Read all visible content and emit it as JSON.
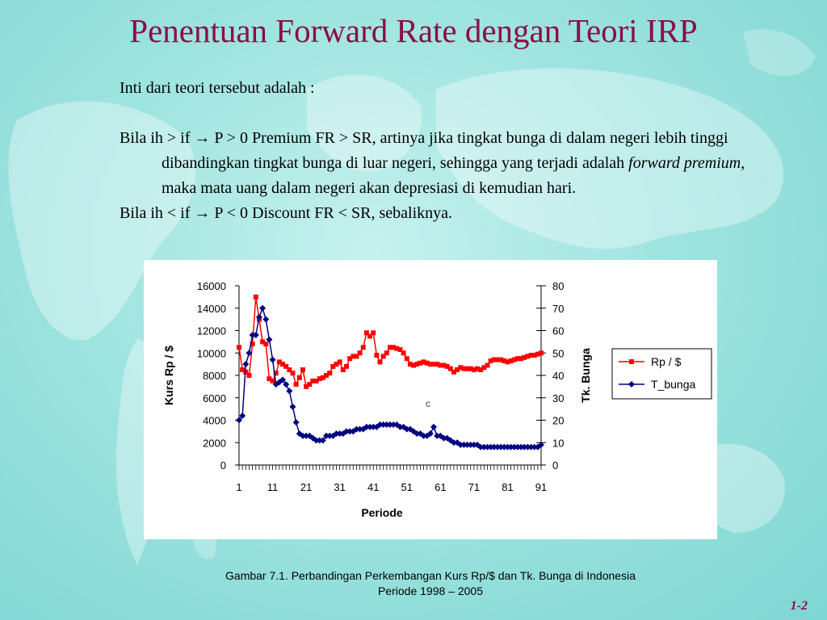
{
  "slide": {
    "title": "Penentuan Forward Rate dengan Teori IRP",
    "intro": "Inti dari teori tersebut adalah :",
    "rule1_before": "Bila ih > if ",
    "rule1_after": " P > 0 Premium FR > SR, artinya jika tingkat bunga di dalam negeri lebih tinggi dibandingkan tingkat bunga di luar negeri, sehingga yang terjadi adalah ",
    "rule1_italic": "forward premium",
    "rule1_end": ", maka mata uang dalam negeri akan depresiasi di kemudian hari.",
    "rule2_before": "Bila ih < if ",
    "rule2_after": " P < 0 Discount FR < SR, sebaliknya.",
    "arrow": "→",
    "caption_line1": "Gambar 7.1. Perbandingan Perkembangan Kurs Rp/$ dan Tk. Bunga di Indonesia",
    "caption_line2": "Periode 1998 – 2005",
    "page_number": "1-2",
    "title_color": "#8a0f45"
  },
  "chart_data": {
    "type": "line",
    "xlabel": "Periode",
    "ylabel_left": "Kurs Rp / $",
    "ylabel_right": "Tk. Bunga",
    "ylim_left": [
      0,
      16000
    ],
    "ylim_right": [
      0,
      80
    ],
    "left_ticks": [
      "0",
      "2000",
      "4000",
      "6000",
      "8000",
      "10000",
      "12000",
      "14000",
      "16000"
    ],
    "right_ticks": [
      "0",
      "10",
      "20",
      "30",
      "40",
      "50",
      "60",
      "70",
      "80"
    ],
    "x_tick_labels": [
      "1",
      "11",
      "21",
      "31",
      "41",
      "51",
      "61",
      "71",
      "81",
      "91"
    ],
    "x_range": [
      1,
      91
    ],
    "stray_mark": "c",
    "legend_position": "right",
    "series": [
      {
        "name": "Rp / $",
        "axis": "left",
        "color": "#ff0000",
        "marker": "square",
        "x": [
          1,
          2,
          3,
          4,
          5,
          6,
          7,
          8,
          9,
          10,
          11,
          12,
          13,
          14,
          15,
          16,
          17,
          18,
          19,
          20,
          21,
          22,
          23,
          24,
          25,
          26,
          27,
          28,
          29,
          30,
          31,
          32,
          33,
          34,
          35,
          36,
          37,
          38,
          39,
          40,
          41,
          42,
          43,
          44,
          45,
          46,
          47,
          48,
          49,
          50,
          51,
          52,
          53,
          54,
          55,
          56,
          57,
          58,
          59,
          60,
          61,
          62,
          63,
          64,
          65,
          66,
          67,
          68,
          69,
          70,
          71,
          72,
          73,
          74,
          75,
          76,
          77,
          78,
          79,
          80,
          81,
          82,
          83,
          84,
          85,
          86,
          87,
          88,
          89,
          90,
          91
        ],
        "values": [
          10500,
          8500,
          8300,
          8000,
          10800,
          15000,
          13000,
          11000,
          10800,
          7700,
          7500,
          8200,
          9200,
          9000,
          8800,
          8500,
          8200,
          7200,
          7800,
          8500,
          7000,
          7200,
          7500,
          7500,
          7700,
          7800,
          8000,
          8200,
          8800,
          9000,
          9200,
          8500,
          8800,
          9500,
          9700,
          9700,
          10000,
          10500,
          11800,
          11500,
          11800,
          9800,
          9200,
          9700,
          10000,
          10500,
          10500,
          10400,
          10300,
          10000,
          9500,
          9000,
          8900,
          9000,
          9100,
          9200,
          9100,
          9000,
          9000,
          9000,
          8900,
          8900,
          8800,
          8600,
          8300,
          8500,
          8700,
          8600,
          8600,
          8600,
          8500,
          8600,
          8500,
          8700,
          8900,
          9300,
          9400,
          9400,
          9400,
          9300,
          9200,
          9300,
          9400,
          9500,
          9500,
          9600,
          9700,
          9800,
          9800,
          9900,
          10000
        ]
      },
      {
        "name": "T_bunga",
        "axis": "right",
        "color": "#000080",
        "marker": "diamond",
        "x": [
          1,
          2,
          3,
          4,
          5,
          6,
          7,
          8,
          9,
          10,
          11,
          12,
          13,
          14,
          15,
          16,
          17,
          18,
          19,
          20,
          21,
          22,
          23,
          24,
          25,
          26,
          27,
          28,
          29,
          30,
          31,
          32,
          33,
          34,
          35,
          36,
          37,
          38,
          39,
          40,
          41,
          42,
          43,
          44,
          45,
          46,
          47,
          48,
          49,
          50,
          51,
          52,
          53,
          54,
          55,
          56,
          57,
          58,
          59,
          60,
          61,
          62,
          63,
          64,
          65,
          66,
          67,
          68,
          69,
          70,
          71,
          72,
          73,
          74,
          75,
          76,
          77,
          78,
          79,
          80,
          81,
          82,
          83,
          84,
          85,
          86,
          87,
          88,
          89,
          90,
          91
        ],
        "values": [
          20,
          22,
          45,
          50,
          58,
          58,
          66,
          70,
          65,
          56,
          47,
          36,
          37,
          38,
          36,
          33,
          26,
          19,
          14,
          13,
          13,
          13,
          12,
          11,
          11,
          11,
          13,
          13,
          13,
          14,
          14,
          14,
          15,
          15,
          15,
          16,
          16,
          16,
          17,
          17,
          17,
          17,
          18,
          18,
          18,
          18,
          18,
          18,
          17,
          17,
          16,
          16,
          15,
          14,
          14,
          13,
          13,
          14,
          17,
          13,
          13,
          12,
          12,
          11,
          10,
          10,
          9,
          9,
          9,
          9,
          9,
          9,
          8,
          8,
          8,
          8,
          8,
          8,
          8,
          8,
          8,
          8,
          8,
          8,
          8,
          8,
          8,
          8,
          8,
          8,
          9
        ]
      }
    ]
  }
}
